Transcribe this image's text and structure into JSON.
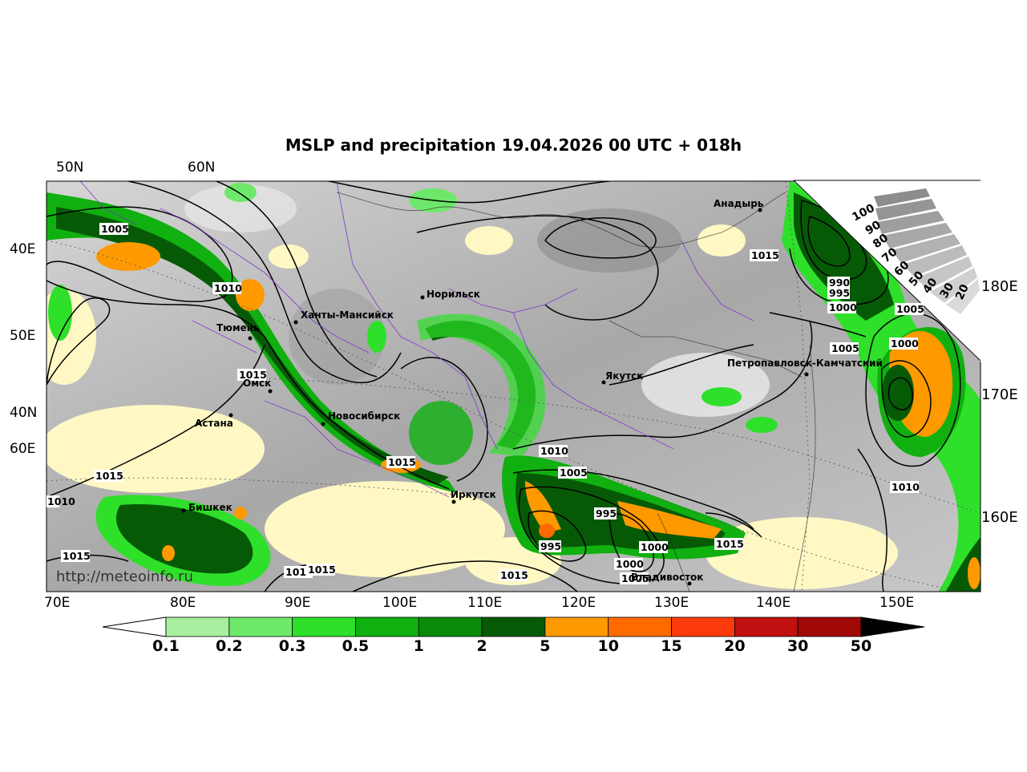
{
  "title": "MSLP and precipitation 19.04.2026 00 UTC + 018h",
  "credit": "http://meteoinfo.ru",
  "lat_labels_top": [
    "50N",
    "60N"
  ],
  "left_labels": [
    "40E",
    "50E",
    "40N",
    "60E"
  ],
  "right_labels": [
    "180E",
    "170E",
    "160E"
  ],
  "bottom_lon_labels": [
    "70E",
    "80E",
    "90E",
    "100E",
    "110E",
    "120E",
    "130E",
    "140E",
    "150E"
  ],
  "polar_scale_labels": [
    "100",
    "90",
    "80",
    "70",
    "60",
    "50",
    "40",
    "30",
    "20"
  ],
  "cities": [
    {
      "name": "Анадырь"
    },
    {
      "name": "Норильск"
    },
    {
      "name": "Ханты-Мансийск"
    },
    {
      "name": "Тюмень"
    },
    {
      "name": "Омск"
    },
    {
      "name": "Новосибирск"
    },
    {
      "name": "Астана"
    },
    {
      "name": "Бишкек"
    },
    {
      "name": "Иркутск"
    },
    {
      "name": "Якутск"
    },
    {
      "name": "Петропавловск-Камчатский"
    },
    {
      "name": "Владивосток"
    }
  ],
  "isobar_labels": [
    "1005",
    "1010",
    "1015",
    "1015",
    "1015",
    "1010",
    "1015",
    "1015",
    "1015",
    "1010",
    "1005",
    "995",
    "995",
    "1000",
    "1000",
    "1005",
    "1015",
    "1015",
    "990",
    "995",
    "1000",
    "1005",
    "1005",
    "1000",
    "1010",
    "1015"
  ],
  "colorbar": {
    "labels": [
      "0.1",
      "0.2",
      "0.3",
      "0.5",
      "1",
      "2",
      "5",
      "10",
      "15",
      "20",
      "30",
      "50"
    ],
    "colors": [
      "#a8f0a0",
      "#6ee86a",
      "#2ee02a",
      "#10b010",
      "#0a8a0a",
      "#065a06",
      "#ff9900",
      "#ff6a00",
      "#ff3a0a",
      "#c01010",
      "#a00808"
    ],
    "under_color": "#ffffff",
    "over_color": "#000000"
  },
  "colors": {
    "land_gray": "#bdbdbd",
    "light_yellow": "#fff8c4",
    "border_purple": "#7a2fd0"
  }
}
